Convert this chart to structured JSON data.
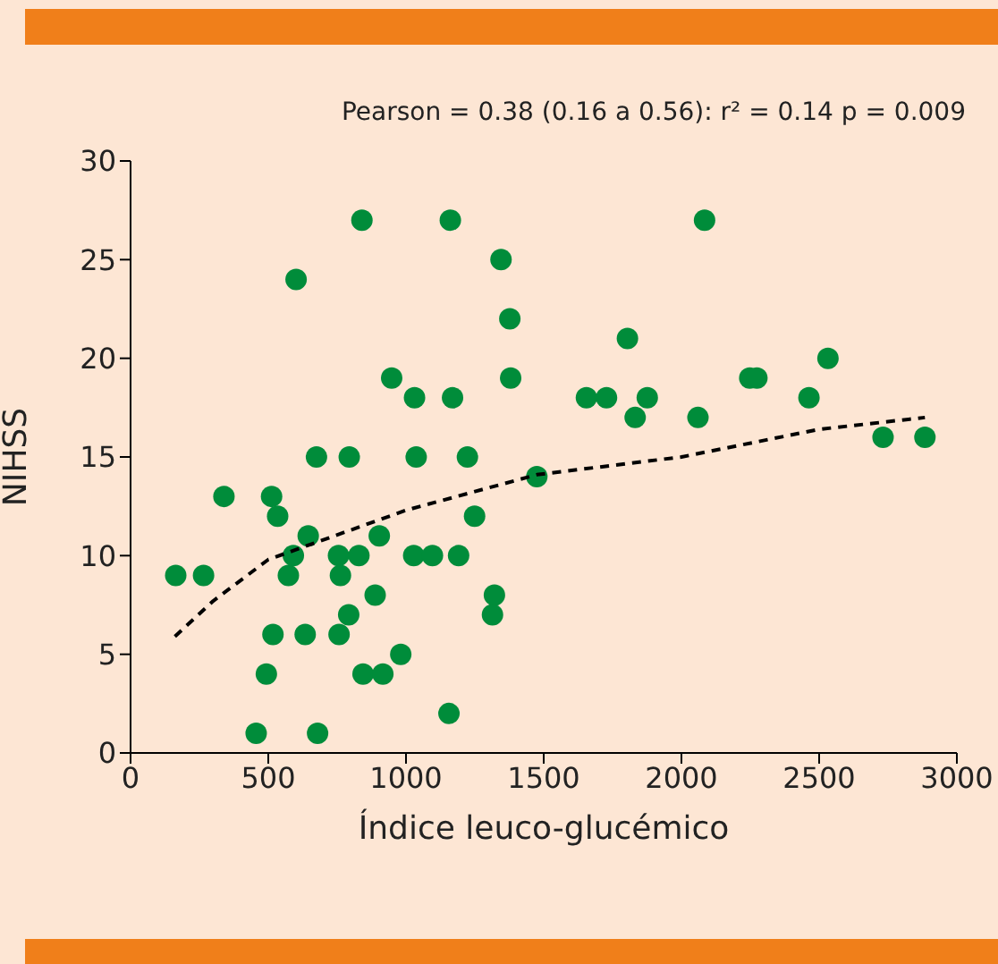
{
  "chart_data": {
    "type": "scatter",
    "xlabel": "Índice leuco-glucémico",
    "ylabel": "NIHSS",
    "annotations": [
      "Pearson = 0.38 (0.16 a 0.56): r² = 0.14 p = 0.009"
    ],
    "xlim": [
      0,
      3000
    ],
    "xticks": [
      0,
      500,
      1000,
      1500,
      2000,
      2500,
      3000
    ],
    "ylim": [
      0,
      30
    ],
    "yticks": [
      0,
      5,
      10,
      15,
      20,
      25,
      30
    ],
    "series": [
      {
        "marker": "circle",
        "color": "#008c3a",
        "x": [
          164,
          265,
          339,
          512,
          534,
          601,
          645,
          591,
          573,
          517,
          493,
          456,
          675,
          794,
          840,
          634,
          679,
          755,
          829,
          762,
          757,
          792,
          844,
          916,
          981,
          888,
          903,
          948,
          1031,
          1037,
          1028,
          1096,
          1191,
          1161,
          1169,
          1223,
          1249,
          1156,
          1321,
          1314,
          1345,
          1377,
          1380,
          1475,
          1655,
          1728,
          1804,
          1832,
          1876,
          2060,
          2084,
          2248,
          2274,
          2463,
          2532,
          2732,
          2884
        ],
        "values": [
          9,
          9,
          13,
          13,
          12,
          24,
          11,
          10,
          9,
          6,
          4,
          1,
          15,
          15,
          27,
          6,
          1,
          10,
          10,
          9,
          6,
          7,
          4,
          4,
          5,
          8,
          11,
          19,
          18,
          15,
          10,
          10,
          10,
          27,
          18,
          15,
          12,
          2,
          8,
          7,
          25,
          22,
          19,
          14,
          18,
          18,
          21,
          17,
          18,
          17,
          27,
          19,
          19,
          18,
          20,
          16,
          16
        ]
      },
      {
        "type": "line",
        "marker": "none",
        "line_style": "dashed",
        "color": "#000000",
        "x": [
          161,
          300,
          500,
          1000,
          1475,
          2000,
          2500,
          2884
        ],
        "values": [
          5.9,
          7.7,
          9.8,
          12.3,
          14.1,
          15.0,
          16.4,
          17.0
        ]
      }
    ]
  }
}
